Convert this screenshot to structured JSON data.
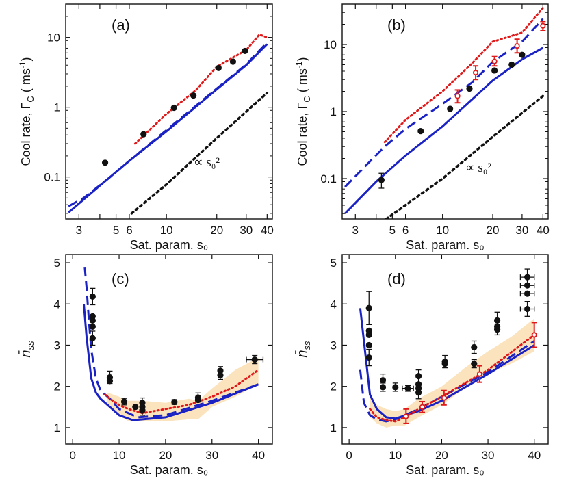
{
  "chart_data": [
    {
      "id": "a",
      "type": "line",
      "panel_label": "(a)",
      "xscale": "log",
      "yscale": "log",
      "xlim": [
        2.5,
        43
      ],
      "ylim": [
        0.025,
        30
      ],
      "xticks": [
        3,
        4,
        5,
        6,
        10,
        20,
        30,
        40
      ],
      "xtick_labels": [
        "3",
        "",
        "5",
        "6",
        "10",
        "20",
        "30",
        "40"
      ],
      "yticks": [
        0.1,
        1,
        10
      ],
      "ytick_labels": [
        "0.1",
        "1",
        "10"
      ],
      "xlabel": "Sat. param. s₀",
      "ylabel": "Cool rate, Γ",
      "ylabel_sub": "C",
      "ylabel_unit": " ( ms",
      "ylabel_sup": "-1",
      "ylabel_close": ")",
      "annotation": "∝ s₀²",
      "series": [
        {
          "style": "solid-blue",
          "x": [
            2.6,
            4,
            6,
            10,
            20,
            30,
            40
          ],
          "y": [
            0.031,
            0.075,
            0.17,
            0.45,
            1.8,
            4.0,
            8.0
          ]
        },
        {
          "style": "dashed-blue",
          "x": [
            2.6,
            3.2,
            4.5,
            6,
            10,
            20,
            30,
            40
          ],
          "y": [
            0.038,
            0.05,
            0.095,
            0.17,
            0.47,
            1.85,
            4.1,
            8.5
          ]
        },
        {
          "style": "dotted-red",
          "x": [
            6.5,
            10,
            15,
            20,
            30,
            36,
            40
          ],
          "y": [
            0.3,
            0.8,
            1.75,
            3.8,
            6.6,
            11,
            10
          ]
        },
        {
          "style": "dotted-black",
          "x": [
            6.2,
            10,
            20,
            40
          ],
          "y": [
            0.03,
            0.078,
            0.36,
            1.6
          ]
        },
        {
          "style": "points-black",
          "x": [
            4.3,
            7.3,
            11.1,
            14.5,
            20.5,
            25,
            29.5
          ],
          "y": [
            0.16,
            0.41,
            0.98,
            1.47,
            3.65,
            4.5,
            6.4
          ]
        }
      ]
    },
    {
      "id": "b",
      "type": "line",
      "panel_label": "(b)",
      "xscale": "log",
      "yscale": "log",
      "xlim": [
        2.5,
        43
      ],
      "ylim": [
        0.025,
        40
      ],
      "xticks": [
        3,
        4,
        5,
        6,
        10,
        20,
        30,
        40
      ],
      "xtick_labels": [
        "3",
        "",
        "5",
        "6",
        "10",
        "20",
        "30",
        "40"
      ],
      "yticks": [
        0.1,
        1,
        10
      ],
      "ytick_labels": [
        "0.1",
        "1",
        "10"
      ],
      "xlabel": "Sat. param. s₀",
      "ylabel": "Cool rate, Γ",
      "ylabel_sub": "C",
      "ylabel_unit": " ( ms",
      "ylabel_sup": "-1",
      "ylabel_close": ")",
      "annotation": "∝ s₀²",
      "series": [
        {
          "style": "solid-blue",
          "x": [
            2.6,
            4,
            6,
            10,
            20,
            30,
            40
          ],
          "y": [
            0.03,
            0.09,
            0.22,
            0.6,
            2.9,
            6.0,
            8.9
          ]
        },
        {
          "style": "dashed-blue",
          "x": [
            2.6,
            3.5,
            4.5,
            6,
            10,
            15,
            20,
            30,
            40
          ],
          "y": [
            0.075,
            0.16,
            0.3,
            0.55,
            1.3,
            2.7,
            5.5,
            11,
            24
          ]
        },
        {
          "style": "dotted-red",
          "x": [
            4.5,
            6,
            10,
            15,
            20,
            30,
            40
          ],
          "y": [
            0.35,
            0.75,
            2.0,
            5.2,
            11,
            15,
            35
          ]
        },
        {
          "style": "dotted-black",
          "x": [
            4.6,
            10,
            20,
            40
          ],
          "y": [
            0.025,
            0.1,
            0.42,
            1.7
          ]
        },
        {
          "style": "points-black",
          "x": [
            4.3,
            7.4,
            11.1,
            14.5,
            20.5,
            26,
            30
          ],
          "y": [
            0.095,
            0.51,
            1.1,
            2.2,
            4.1,
            5.0,
            7.0
          ],
          "err_lo": [
            0.072,
            null,
            null,
            null,
            null,
            null,
            null
          ],
          "err_hi": [
            0.12,
            null,
            null,
            null,
            null,
            null,
            null
          ]
        },
        {
          "style": "points-red-open",
          "x": [
            12.3,
            15.8,
            20.5,
            28,
            40
          ],
          "y": [
            1.7,
            3.8,
            5.6,
            9.5,
            19
          ],
          "err_lo": [
            1.35,
            3.0,
            4.8,
            7.5,
            16
          ],
          "err_hi": [
            2.1,
            4.8,
            6.6,
            12,
            22
          ]
        }
      ]
    },
    {
      "id": "c",
      "type": "line",
      "panel_label": "(c)",
      "xscale": "linear",
      "yscale": "linear",
      "xlim": [
        -1.5,
        43
      ],
      "ylim": [
        0.6,
        5.2
      ],
      "xticks": [
        0,
        10,
        20,
        30,
        40
      ],
      "xtick_labels": [
        "0",
        "10",
        "20",
        "30",
        "40"
      ],
      "yticks": [
        1,
        2,
        3,
        4,
        5
      ],
      "ytick_labels": [
        "1",
        "2",
        "3",
        "4",
        "5"
      ],
      "xlabel": "Sat. param. s₀",
      "ylabel": "n̄",
      "ylabel_sub": "ss",
      "band": {
        "x": [
          7.5,
          10,
          12,
          15,
          20,
          25,
          27,
          30,
          35,
          40
        ],
        "lo": [
          1.55,
          1.3,
          1.15,
          1.15,
          1.15,
          1.2,
          1.2,
          1.5,
          1.75,
          2.05
        ],
        "hi": [
          1.85,
          1.75,
          1.65,
          1.65,
          1.6,
          1.7,
          1.65,
          1.95,
          2.4,
          2.7
        ]
      },
      "series": [
        {
          "style": "solid-blue",
          "x": [
            2.4,
            3,
            4,
            5,
            6,
            8,
            10,
            13,
            20,
            30,
            40
          ],
          "y": [
            4.0,
            3.2,
            2.2,
            1.85,
            1.7,
            1.5,
            1.3,
            1.18,
            1.25,
            1.6,
            2.05
          ]
        },
        {
          "style": "dashed-blue",
          "x": [
            2.6,
            3,
            3.5,
            4,
            5,
            6,
            8,
            10,
            14,
            20,
            30,
            40
          ],
          "y": [
            4.9,
            4.4,
            3.6,
            2.9,
            2.2,
            1.9,
            1.7,
            1.45,
            1.25,
            1.3,
            1.65,
            2.05
          ]
        },
        {
          "style": "dotted-red",
          "x": [
            7,
            8,
            10,
            12,
            15,
            20,
            25,
            30,
            35,
            40
          ],
          "y": [
            1.8,
            1.7,
            1.55,
            1.45,
            1.35,
            1.45,
            1.55,
            1.75,
            2.0,
            2.4
          ]
        },
        {
          "style": "points-black",
          "x": [
            4.3,
            4.3,
            4.3,
            4.3,
            4.3,
            8.0,
            8.0,
            11.1,
            13.5,
            15.0,
            15.0,
            15.0,
            21.9,
            27.0,
            27.0,
            31.8,
            31.8,
            39.2
          ],
          "y": [
            4.18,
            3.7,
            3.6,
            3.45,
            3.17,
            2.22,
            2.13,
            1.63,
            1.5,
            1.6,
            1.5,
            1.42,
            1.62,
            1.73,
            1.67,
            2.38,
            2.27,
            2.65
          ],
          "err_lo": [
            3.98,
            null,
            null,
            null,
            3.0,
            2.07,
            null,
            1.55,
            null,
            1.48,
            null,
            1.3,
            1.56,
            1.62,
            null,
            2.25,
            2.17,
            2.55
          ],
          "err_hi": [
            4.38,
            null,
            null,
            null,
            3.34,
            2.37,
            null,
            1.71,
            null,
            1.72,
            null,
            1.54,
            1.68,
            1.84,
            null,
            2.48,
            2.37,
            2.75
          ],
          "xerr": [
            null,
            null,
            null,
            null,
            null,
            null,
            null,
            null,
            null,
            null,
            null,
            null,
            null,
            null,
            null,
            null,
            null,
            1.8
          ]
        }
      ]
    },
    {
      "id": "d",
      "type": "line",
      "panel_label": "(d)",
      "xscale": "linear",
      "yscale": "linear",
      "xlim": [
        -1.5,
        43
      ],
      "ylim": [
        0.6,
        5.2
      ],
      "xticks": [
        0,
        10,
        20,
        30,
        40
      ],
      "xtick_labels": [
        "0",
        "10",
        "20",
        "30",
        "40"
      ],
      "yticks": [
        1,
        2,
        3,
        4,
        5
      ],
      "ytick_labels": [
        "1",
        "2",
        "3",
        "4",
        "5"
      ],
      "xlabel": "Sat. param. s₀",
      "ylabel": "n̄",
      "ylabel_sub": "ss",
      "band": {
        "x": [
          4.5,
          6,
          8,
          10,
          12,
          15,
          20,
          25,
          30,
          35,
          40
        ],
        "lo": [
          1.25,
          1.1,
          1.0,
          1.05,
          1.05,
          1.25,
          1.55,
          1.95,
          2.3,
          2.55,
          2.85
        ],
        "hi": [
          1.75,
          1.55,
          1.45,
          1.4,
          1.45,
          1.7,
          2.0,
          2.45,
          2.85,
          3.2,
          3.65
        ]
      },
      "series": [
        {
          "style": "solid-blue",
          "x": [
            2.4,
            3.5,
            4.5,
            6,
            8,
            10,
            15,
            20,
            30,
            40
          ],
          "y": [
            3.9,
            2.8,
            1.8,
            1.45,
            1.25,
            1.22,
            1.4,
            1.65,
            2.3,
            3.0
          ]
        },
        {
          "style": "dashed-blue",
          "x": [
            2.4,
            3.2,
            4.5,
            6,
            8,
            10,
            15,
            20,
            30,
            40
          ],
          "y": [
            2.4,
            1.6,
            1.3,
            1.2,
            1.15,
            1.2,
            1.45,
            1.75,
            2.35,
            3.1
          ]
        },
        {
          "style": "dotted-red",
          "x": [
            4.5,
            6,
            8,
            10,
            12,
            15,
            20,
            30,
            40
          ],
          "y": [
            1.45,
            1.25,
            1.18,
            1.15,
            1.25,
            1.45,
            1.75,
            2.4,
            3.25
          ]
        },
        {
          "style": "points-black",
          "x": [
            4.3,
            4.3,
            4.3,
            4.3,
            4.3,
            7.3,
            7.3,
            10.0,
            12.7,
            15.0,
            15.0,
            15.0,
            15.0,
            20.7,
            20.7,
            27.0,
            27.0,
            32.0,
            32.0,
            32.0,
            38.5,
            38.5,
            38.5,
            38.5
          ],
          "y": [
            3.9,
            3.35,
            3.25,
            3.0,
            2.7,
            2.15,
            1.98,
            1.98,
            1.95,
            2.25,
            2.05,
            1.95,
            1.85,
            2.6,
            2.55,
            2.95,
            2.55,
            3.6,
            3.45,
            3.38,
            4.65,
            4.45,
            4.25,
            3.88
          ],
          "err_lo": [
            3.5,
            null,
            null,
            null,
            2.5,
            2.0,
            1.88,
            1.88,
            1.88,
            2.1,
            null,
            null,
            1.7,
            2.45,
            null,
            2.8,
            2.45,
            3.45,
            null,
            3.25,
            4.45,
            null,
            null,
            3.7
          ],
          "err_hi": [
            4.3,
            null,
            null,
            null,
            2.9,
            2.3,
            2.08,
            2.08,
            2.02,
            2.4,
            null,
            null,
            2.0,
            2.75,
            null,
            3.1,
            2.65,
            3.8,
            null,
            3.51,
            4.85,
            null,
            null,
            4.06
          ],
          "xerr": [
            null,
            null,
            null,
            null,
            null,
            null,
            null,
            null,
            1.2,
            null,
            null,
            null,
            null,
            null,
            null,
            null,
            null,
            null,
            null,
            null,
            1.5,
            1.5,
            1.5,
            1.5
          ]
        },
        {
          "style": "points-red-open",
          "x": [
            12.3,
            15.8,
            20.5,
            28.2,
            40
          ],
          "y": [
            1.27,
            1.5,
            1.72,
            2.3,
            3.25
          ],
          "err_lo": [
            1.1,
            1.37,
            1.55,
            2.1,
            2.95
          ],
          "err_hi": [
            1.45,
            1.63,
            1.9,
            2.5,
            3.55
          ]
        }
      ]
    }
  ]
}
